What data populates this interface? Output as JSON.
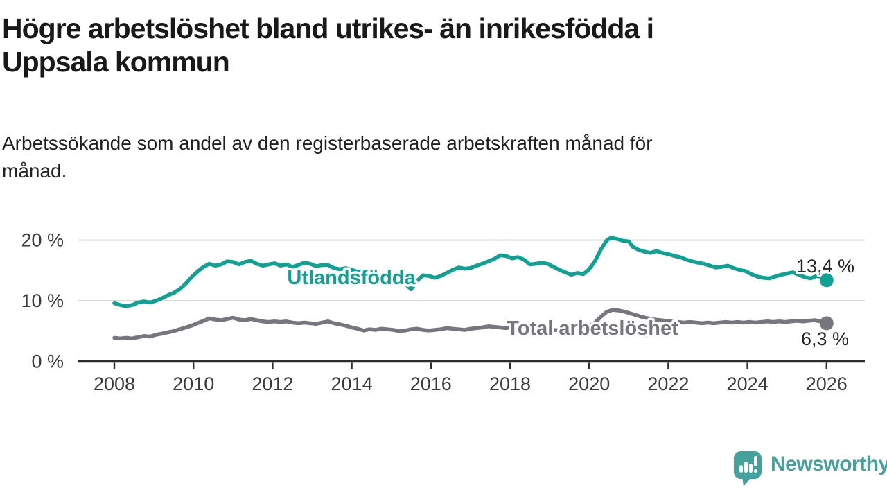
{
  "header": {
    "title_line1": "Högre arbetslöshet bland utrikes- än inrikesfödda i",
    "title_line2": "Uppsala kommun",
    "subtitle_line1": "Arbetssökande som andel av den registerbaserade arbetskraften månad för",
    "subtitle_line2": "månad."
  },
  "chart_data": {
    "type": "line",
    "title": "Högre arbetslöshet bland utrikes- än inrikesfödda i Uppsala kommun",
    "subtitle": "Arbetssökande som andel av den registerbaserade arbetskraften månad för månad.",
    "grid": "horizontal",
    "x_axis": {
      "ticks": [
        2008,
        2010,
        2012,
        2014,
        2016,
        2018,
        2020,
        2022,
        2024,
        2026
      ],
      "range": [
        2008,
        2026.9
      ]
    },
    "y_axis": {
      "ticks": [
        {
          "value": 0,
          "label": "0 %"
        },
        {
          "value": 10,
          "label": "10 %"
        },
        {
          "value": 20,
          "label": "20 %"
        }
      ],
      "range": [
        0,
        22
      ]
    },
    "series": [
      {
        "name": "Utlandsfödda",
        "color": "#0fa294",
        "end_label": "13,4 %",
        "end_value": 13.4,
        "points": [
          [
            2008.0,
            9.6
          ],
          [
            2008.15,
            9.3
          ],
          [
            2008.3,
            9.1
          ],
          [
            2008.45,
            9.3
          ],
          [
            2008.6,
            9.7
          ],
          [
            2008.75,
            9.9
          ],
          [
            2008.9,
            9.7
          ],
          [
            2009.05,
            10.0
          ],
          [
            2009.2,
            10.4
          ],
          [
            2009.35,
            10.9
          ],
          [
            2009.5,
            11.3
          ],
          [
            2009.65,
            11.9
          ],
          [
            2009.8,
            12.8
          ],
          [
            2009.95,
            13.9
          ],
          [
            2010.1,
            14.8
          ],
          [
            2010.25,
            15.6
          ],
          [
            2010.4,
            16.1
          ],
          [
            2010.55,
            15.8
          ],
          [
            2010.7,
            16.0
          ],
          [
            2010.85,
            16.5
          ],
          [
            2011.0,
            16.4
          ],
          [
            2011.15,
            16.0
          ],
          [
            2011.3,
            16.4
          ],
          [
            2011.45,
            16.6
          ],
          [
            2011.6,
            16.1
          ],
          [
            2011.75,
            15.8
          ],
          [
            2011.9,
            16.0
          ],
          [
            2012.05,
            16.2
          ],
          [
            2012.2,
            15.8
          ],
          [
            2012.35,
            16.0
          ],
          [
            2012.5,
            15.6
          ],
          [
            2012.65,
            15.9
          ],
          [
            2012.8,
            16.3
          ],
          [
            2012.95,
            16.1
          ],
          [
            2013.1,
            15.7
          ],
          [
            2013.25,
            15.9
          ],
          [
            2013.4,
            15.9
          ],
          [
            2013.55,
            15.4
          ],
          [
            2013.7,
            15.2
          ],
          [
            2013.85,
            15.4
          ],
          [
            2014.0,
            15.1
          ],
          [
            2014.15,
            14.8
          ],
          [
            2014.3,
            14.9
          ],
          [
            2014.45,
            14.5
          ],
          [
            2014.6,
            14.2
          ],
          [
            2014.75,
            13.9
          ],
          [
            2014.9,
            13.6
          ],
          [
            2015.05,
            13.4
          ],
          [
            2015.2,
            13.1
          ],
          [
            2015.35,
            12.8
          ],
          [
            2015.5,
            11.9
          ],
          [
            2015.65,
            13.3
          ],
          [
            2015.8,
            14.2
          ],
          [
            2015.95,
            14.1
          ],
          [
            2016.1,
            13.8
          ],
          [
            2016.25,
            14.1
          ],
          [
            2016.4,
            14.6
          ],
          [
            2016.55,
            15.1
          ],
          [
            2016.7,
            15.5
          ],
          [
            2016.85,
            15.3
          ],
          [
            2017.0,
            15.4
          ],
          [
            2017.15,
            15.8
          ],
          [
            2017.3,
            16.1
          ],
          [
            2017.45,
            16.5
          ],
          [
            2017.6,
            16.9
          ],
          [
            2017.75,
            17.5
          ],
          [
            2017.9,
            17.4
          ],
          [
            2018.05,
            17.0
          ],
          [
            2018.2,
            17.2
          ],
          [
            2018.35,
            16.8
          ],
          [
            2018.5,
            16.0
          ],
          [
            2018.65,
            16.1
          ],
          [
            2018.8,
            16.3
          ],
          [
            2018.95,
            16.1
          ],
          [
            2019.1,
            15.6
          ],
          [
            2019.25,
            15.1
          ],
          [
            2019.4,
            14.7
          ],
          [
            2019.55,
            14.3
          ],
          [
            2019.7,
            14.6
          ],
          [
            2019.85,
            14.4
          ],
          [
            2020.0,
            15.2
          ],
          [
            2020.15,
            16.6
          ],
          [
            2020.3,
            18.5
          ],
          [
            2020.45,
            20.0
          ],
          [
            2020.55,
            20.4
          ],
          [
            2020.7,
            20.2
          ],
          [
            2020.85,
            19.9
          ],
          [
            2021.0,
            19.8
          ],
          [
            2021.1,
            18.9
          ],
          [
            2021.25,
            18.4
          ],
          [
            2021.4,
            18.1
          ],
          [
            2021.55,
            17.9
          ],
          [
            2021.7,
            18.2
          ],
          [
            2021.85,
            17.9
          ],
          [
            2022.0,
            17.7
          ],
          [
            2022.15,
            17.4
          ],
          [
            2022.3,
            17.2
          ],
          [
            2022.45,
            16.8
          ],
          [
            2022.6,
            16.5
          ],
          [
            2022.75,
            16.3
          ],
          [
            2022.9,
            16.1
          ],
          [
            2023.05,
            15.8
          ],
          [
            2023.2,
            15.5
          ],
          [
            2023.35,
            15.6
          ],
          [
            2023.5,
            15.8
          ],
          [
            2023.65,
            15.4
          ],
          [
            2023.8,
            15.1
          ],
          [
            2023.95,
            14.9
          ],
          [
            2024.1,
            14.4
          ],
          [
            2024.25,
            14.0
          ],
          [
            2024.4,
            13.8
          ],
          [
            2024.55,
            13.7
          ],
          [
            2024.7,
            14.0
          ],
          [
            2024.85,
            14.3
          ],
          [
            2025.0,
            14.5
          ],
          [
            2025.15,
            14.7
          ],
          [
            2025.3,
            14.3
          ],
          [
            2025.45,
            13.9
          ],
          [
            2025.6,
            13.7
          ],
          [
            2025.75,
            14.1
          ],
          [
            2025.85,
            14.0
          ],
          [
            2026.0,
            13.4
          ]
        ]
      },
      {
        "name": "Total arbetslöshet",
        "color": "#77767e",
        "end_label": "6,3 %",
        "end_value": 6.3,
        "points": [
          [
            2008.0,
            3.9
          ],
          [
            2008.15,
            3.8
          ],
          [
            2008.3,
            3.9
          ],
          [
            2008.45,
            3.8
          ],
          [
            2008.6,
            4.0
          ],
          [
            2008.75,
            4.2
          ],
          [
            2008.9,
            4.1
          ],
          [
            2009.05,
            4.4
          ],
          [
            2009.2,
            4.6
          ],
          [
            2009.35,
            4.8
          ],
          [
            2009.5,
            5.0
          ],
          [
            2009.65,
            5.3
          ],
          [
            2009.8,
            5.6
          ],
          [
            2009.95,
            5.9
          ],
          [
            2010.1,
            6.3
          ],
          [
            2010.25,
            6.7
          ],
          [
            2010.4,
            7.1
          ],
          [
            2010.55,
            6.9
          ],
          [
            2010.7,
            6.8
          ],
          [
            2010.85,
            7.0
          ],
          [
            2011.0,
            7.2
          ],
          [
            2011.15,
            6.9
          ],
          [
            2011.3,
            6.8
          ],
          [
            2011.45,
            7.0
          ],
          [
            2011.6,
            6.8
          ],
          [
            2011.75,
            6.6
          ],
          [
            2011.9,
            6.5
          ],
          [
            2012.05,
            6.6
          ],
          [
            2012.2,
            6.5
          ],
          [
            2012.35,
            6.6
          ],
          [
            2012.5,
            6.4
          ],
          [
            2012.65,
            6.3
          ],
          [
            2012.8,
            6.4
          ],
          [
            2012.95,
            6.3
          ],
          [
            2013.1,
            6.2
          ],
          [
            2013.25,
            6.4
          ],
          [
            2013.4,
            6.6
          ],
          [
            2013.55,
            6.3
          ],
          [
            2013.7,
            6.1
          ],
          [
            2013.85,
            5.9
          ],
          [
            2014.0,
            5.6
          ],
          [
            2014.15,
            5.4
          ],
          [
            2014.3,
            5.1
          ],
          [
            2014.45,
            5.3
          ],
          [
            2014.6,
            5.2
          ],
          [
            2014.75,
            5.4
          ],
          [
            2014.9,
            5.3
          ],
          [
            2015.05,
            5.2
          ],
          [
            2015.2,
            5.0
          ],
          [
            2015.35,
            5.1
          ],
          [
            2015.5,
            5.3
          ],
          [
            2015.65,
            5.4
          ],
          [
            2015.8,
            5.2
          ],
          [
            2015.95,
            5.1
          ],
          [
            2016.1,
            5.2
          ],
          [
            2016.25,
            5.3
          ],
          [
            2016.4,
            5.5
          ],
          [
            2016.55,
            5.4
          ],
          [
            2016.7,
            5.3
          ],
          [
            2016.85,
            5.2
          ],
          [
            2017.0,
            5.4
          ],
          [
            2017.15,
            5.5
          ],
          [
            2017.3,
            5.6
          ],
          [
            2017.45,
            5.8
          ],
          [
            2017.6,
            5.7
          ],
          [
            2017.75,
            5.6
          ],
          [
            2017.9,
            5.5
          ],
          [
            2018.05,
            5.7
          ],
          [
            2018.2,
            5.6
          ],
          [
            2018.35,
            5.5
          ],
          [
            2018.5,
            5.4
          ],
          [
            2018.65,
            5.5
          ],
          [
            2018.8,
            5.4
          ],
          [
            2018.95,
            5.3
          ],
          [
            2019.1,
            5.2
          ],
          [
            2019.25,
            5.1
          ],
          [
            2019.4,
            5.3
          ],
          [
            2019.55,
            5.2
          ],
          [
            2019.7,
            5.4
          ],
          [
            2019.85,
            5.5
          ],
          [
            2020.0,
            5.8
          ],
          [
            2020.15,
            6.4
          ],
          [
            2020.3,
            7.4
          ],
          [
            2020.45,
            8.2
          ],
          [
            2020.6,
            8.5
          ],
          [
            2020.75,
            8.4
          ],
          [
            2020.9,
            8.2
          ],
          [
            2021.05,
            7.9
          ],
          [
            2021.2,
            7.6
          ],
          [
            2021.35,
            7.3
          ],
          [
            2021.5,
            7.1
          ],
          [
            2021.65,
            6.9
          ],
          [
            2021.8,
            6.8
          ],
          [
            2021.95,
            6.7
          ],
          [
            2022.1,
            6.6
          ],
          [
            2022.25,
            6.5
          ],
          [
            2022.4,
            6.4
          ],
          [
            2022.55,
            6.5
          ],
          [
            2022.7,
            6.4
          ],
          [
            2022.85,
            6.3
          ],
          [
            2023.0,
            6.4
          ],
          [
            2023.15,
            6.3
          ],
          [
            2023.3,
            6.4
          ],
          [
            2023.45,
            6.5
          ],
          [
            2023.6,
            6.4
          ],
          [
            2023.75,
            6.5
          ],
          [
            2023.9,
            6.4
          ],
          [
            2024.05,
            6.5
          ],
          [
            2024.2,
            6.4
          ],
          [
            2024.35,
            6.5
          ],
          [
            2024.5,
            6.6
          ],
          [
            2024.65,
            6.5
          ],
          [
            2024.8,
            6.6
          ],
          [
            2024.95,
            6.5
          ],
          [
            2025.1,
            6.6
          ],
          [
            2025.25,
            6.7
          ],
          [
            2025.4,
            6.6
          ],
          [
            2025.55,
            6.7
          ],
          [
            2025.7,
            6.8
          ],
          [
            2025.85,
            6.6
          ],
          [
            2026.0,
            6.3
          ]
        ]
      }
    ],
    "colors": {
      "grid": "#d9d9d9",
      "axis": "#2d2d2d",
      "tick_text": "#3b3b3b",
      "value_text": "#252525"
    }
  },
  "footer": {
    "brand": "Newsworthy",
    "brand_color": "#44a19c"
  }
}
